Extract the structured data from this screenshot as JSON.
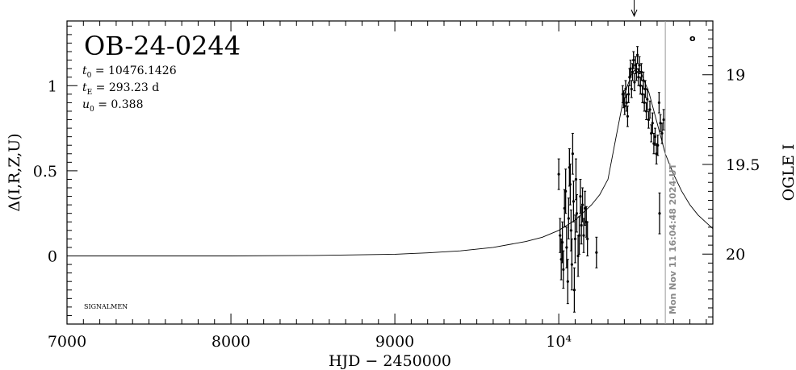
{
  "chart_data": {
    "type": "scatter",
    "title": "OB-24-0244",
    "params": [
      {
        "sym": "t",
        "sub": "0",
        "text": " = 10476.1426"
      },
      {
        "sym": "t",
        "sub": "E",
        "text": " = 293.23 d"
      },
      {
        "sym": "u",
        "sub": "0",
        "text": " = 0.388"
      }
    ],
    "footer_label": "SIGNALMEN",
    "corner_mark": "o",
    "date_stamp": "Mon Nov 11 16:04:48 2024-UT",
    "xlabel": "HJD − 2450000",
    "ylabel_left": "Δ(I,R,Z,U)",
    "ylabel_right": "OGLE I",
    "xlim": [
      7000,
      10940
    ],
    "ylim": [
      -0.4,
      1.38
    ],
    "ylim_right": [
      20.39,
      18.7
    ],
    "grid": false,
    "x_ticks": [
      {
        "value": 7000,
        "label": "7000"
      },
      {
        "value": 8000,
        "label": "8000"
      },
      {
        "value": 9000,
        "label": "9000"
      },
      {
        "value": 10000,
        "label": "10⁴"
      }
    ],
    "y_ticks_left": [
      {
        "value": 0,
        "label": "0"
      },
      {
        "value": 0.5,
        "label": "0.5"
      },
      {
        "value": 1,
        "label": "1"
      }
    ],
    "y_ticks_right": [
      {
        "value": 19,
        "label": "19"
      },
      {
        "value": 19.5,
        "label": "19.5"
      },
      {
        "value": 20,
        "label": "20"
      }
    ],
    "date_line_x": 10650,
    "peak_marker_x": 10460,
    "model_curve": {
      "x": [
        7000,
        8000,
        8500,
        9000,
        9200,
        9400,
        9600,
        9800,
        9900,
        10000,
        10100,
        10200,
        10250,
        10300,
        10350,
        10400,
        10450,
        10476,
        10500,
        10550,
        10600,
        10650,
        10700,
        10750,
        10800,
        10850,
        10940
      ],
      "y": [
        0.0,
        0.0,
        0.003,
        0.01,
        0.018,
        0.03,
        0.05,
        0.085,
        0.11,
        0.15,
        0.21,
        0.3,
        0.36,
        0.45,
        0.7,
        0.95,
        1.08,
        1.1,
        1.08,
        0.96,
        0.78,
        0.6,
        0.48,
        0.38,
        0.3,
        0.24,
        0.16
      ]
    },
    "series": [
      {
        "points": [
          {
            "x": 10000,
            "y": 0.48,
            "err": 0.09
          },
          {
            "x": 10008,
            "y": 0.12,
            "err": 0.1
          },
          {
            "x": 10015,
            "y": -0.02,
            "err": 0.12
          },
          {
            "x": 10022,
            "y": 0.08,
            "err": 0.12
          },
          {
            "x": 10028,
            "y": -0.08,
            "err": 0.11
          },
          {
            "x": 10035,
            "y": 0.28,
            "err": 0.11
          },
          {
            "x": 10042,
            "y": 0.38,
            "err": 0.13
          },
          {
            "x": 10048,
            "y": 0.05,
            "err": 0.12
          },
          {
            "x": 10055,
            "y": -0.15,
            "err": 0.13
          },
          {
            "x": 10060,
            "y": 0.22,
            "err": 0.12
          },
          {
            "x": 10065,
            "y": 0.52,
            "err": 0.11
          },
          {
            "x": 10070,
            "y": 0.42,
            "err": 0.12
          },
          {
            "x": 10075,
            "y": 0.15,
            "err": 0.12
          },
          {
            "x": 10080,
            "y": -0.05,
            "err": 0.15
          },
          {
            "x": 10085,
            "y": 0.6,
            "err": 0.12
          },
          {
            "x": 10090,
            "y": 0.32,
            "err": 0.12
          },
          {
            "x": 10095,
            "y": -0.2,
            "err": 0.13
          },
          {
            "x": 10100,
            "y": 0.1,
            "err": 0.14
          },
          {
            "x": 10105,
            "y": 0.45,
            "err": 0.12
          },
          {
            "x": 10110,
            "y": 0.25,
            "err": 0.11
          },
          {
            "x": 10118,
            "y": 0.0,
            "err": 0.12
          },
          {
            "x": 10125,
            "y": 0.12,
            "err": 0.11
          },
          {
            "x": 10132,
            "y": 0.35,
            "err": 0.1
          },
          {
            "x": 10138,
            "y": 0.18,
            "err": 0.11
          },
          {
            "x": 10145,
            "y": 0.3,
            "err": 0.1
          },
          {
            "x": 10152,
            "y": 0.12,
            "err": 0.1
          },
          {
            "x": 10160,
            "y": 0.28,
            "err": 0.1
          },
          {
            "x": 10168,
            "y": 0.2,
            "err": 0.09
          },
          {
            "x": 10175,
            "y": 0.1,
            "err": 0.1
          },
          {
            "x": 10230,
            "y": 0.02,
            "err": 0.09
          },
          {
            "x": 10390,
            "y": 0.95,
            "err": 0.05
          },
          {
            "x": 10396,
            "y": 0.92,
            "err": 0.05
          },
          {
            "x": 10402,
            "y": 0.88,
            "err": 0.05
          },
          {
            "x": 10408,
            "y": 0.98,
            "err": 0.05
          },
          {
            "x": 10414,
            "y": 0.9,
            "err": 0.05
          },
          {
            "x": 10420,
            "y": 0.82,
            "err": 0.06
          },
          {
            "x": 10426,
            "y": 0.95,
            "err": 0.05
          },
          {
            "x": 10432,
            "y": 1.05,
            "err": 0.05
          },
          {
            "x": 10438,
            "y": 1.1,
            "err": 0.05
          },
          {
            "x": 10444,
            "y": 0.98,
            "err": 0.05
          },
          {
            "x": 10450,
            "y": 1.08,
            "err": 0.05
          },
          {
            "x": 10456,
            "y": 1.15,
            "err": 0.05
          },
          {
            "x": 10462,
            "y": 1.02,
            "err": 0.05
          },
          {
            "x": 10468,
            "y": 1.12,
            "err": 0.05
          },
          {
            "x": 10474,
            "y": 1.08,
            "err": 0.05
          },
          {
            "x": 10480,
            "y": 1.18,
            "err": 0.05
          },
          {
            "x": 10486,
            "y": 1.05,
            "err": 0.05
          },
          {
            "x": 10492,
            "y": 1.12,
            "err": 0.05
          },
          {
            "x": 10498,
            "y": 1.0,
            "err": 0.05
          },
          {
            "x": 10504,
            "y": 1.08,
            "err": 0.05
          },
          {
            "x": 10510,
            "y": 0.95,
            "err": 0.05
          },
          {
            "x": 10516,
            "y": 1.03,
            "err": 0.05
          },
          {
            "x": 10522,
            "y": 0.9,
            "err": 0.05
          },
          {
            "x": 10528,
            "y": 0.98,
            "err": 0.05
          },
          {
            "x": 10534,
            "y": 0.85,
            "err": 0.05
          },
          {
            "x": 10540,
            "y": 0.92,
            "err": 0.06
          },
          {
            "x": 10548,
            "y": 0.8,
            "err": 0.05
          },
          {
            "x": 10556,
            "y": 0.86,
            "err": 0.05
          },
          {
            "x": 10564,
            "y": 0.72,
            "err": 0.05
          },
          {
            "x": 10572,
            "y": 0.78,
            "err": 0.06
          },
          {
            "x": 10580,
            "y": 0.66,
            "err": 0.06
          },
          {
            "x": 10588,
            "y": 0.7,
            "err": 0.05
          },
          {
            "x": 10596,
            "y": 0.6,
            "err": 0.06
          },
          {
            "x": 10604,
            "y": 0.65,
            "err": 0.06
          },
          {
            "x": 10612,
            "y": 0.9,
            "err": 0.06
          },
          {
            "x": 10620,
            "y": 0.78,
            "err": 0.05
          },
          {
            "x": 10630,
            "y": 0.72,
            "err": 0.06
          },
          {
            "x": 10640,
            "y": 0.8,
            "err": 0.06
          },
          {
            "x": 10615,
            "y": 0.25,
            "err": 0.12
          }
        ]
      }
    ]
  }
}
